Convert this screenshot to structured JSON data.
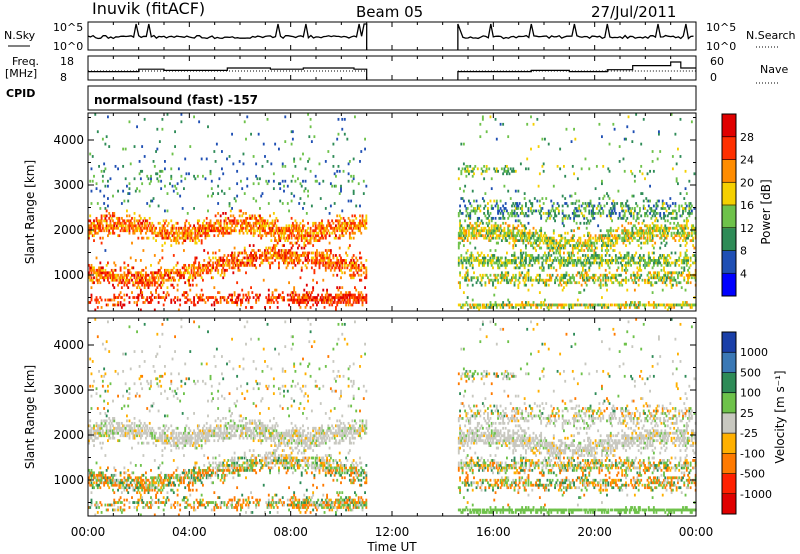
{
  "header": {
    "station": "Inuvik (fitACF)",
    "beam": "Beam 05",
    "date": "27/Jul/2011"
  },
  "strips": {
    "nsky_label": "N.Sky",
    "nsky_ticks": [
      "10^5",
      "10^0"
    ],
    "nsearch_label": "N.Search",
    "freq_label_1": "Freq.",
    "freq_label_2": "[MHz]",
    "freq_ticks": [
      "18",
      "8"
    ],
    "nave_label": "Nave",
    "nave_ticks": [
      "60",
      "0"
    ],
    "cpid_label": "CPID",
    "cpid_value": "normalsound (fast) -157"
  },
  "chart_data": [
    {
      "type": "heatmap",
      "name": "power",
      "ylabel": "Slant Range [km]",
      "yticks": [
        1000,
        2000,
        3000,
        4000
      ],
      "ylim": [
        200,
        4600
      ],
      "colorbar_label": "Power [dB]",
      "colorbar_ticks": [
        4,
        8,
        12,
        16,
        20,
        24,
        28
      ],
      "colormap": [
        "#0000ff",
        "#1f4fb4",
        "#2e8b57",
        "#6ec24a",
        "#f5d000",
        "#ff8c00",
        "#ff3000",
        "#e00000"
      ],
      "data_gap_hours": [
        11.0,
        14.6
      ]
    },
    {
      "type": "heatmap",
      "name": "velocity",
      "ylabel": "Slant Range [km]",
      "yticks": [
        1000,
        2000,
        3000,
        4000
      ],
      "ylim": [
        200,
        4600
      ],
      "colorbar_label": "Velocity [m s⁻¹]",
      "colorbar_ticks": [
        "1000",
        "500",
        "100",
        "25",
        "-25",
        "-100",
        "-500",
        "-1000"
      ],
      "colormap": [
        "#1a3fa8",
        "#3a78b5",
        "#2e8b57",
        "#6ec24a",
        "#c8c8c0",
        "#ffb000",
        "#ff7a00",
        "#ff2000",
        "#e00000"
      ],
      "data_gap_hours": [
        11.0,
        14.6
      ]
    }
  ],
  "xaxis": {
    "label": "Time UT",
    "ticks": [
      "00:00",
      "04:00",
      "08:00",
      "12:00",
      "16:00",
      "20:00",
      "00:00"
    ],
    "range_hours": [
      0,
      24
    ]
  }
}
